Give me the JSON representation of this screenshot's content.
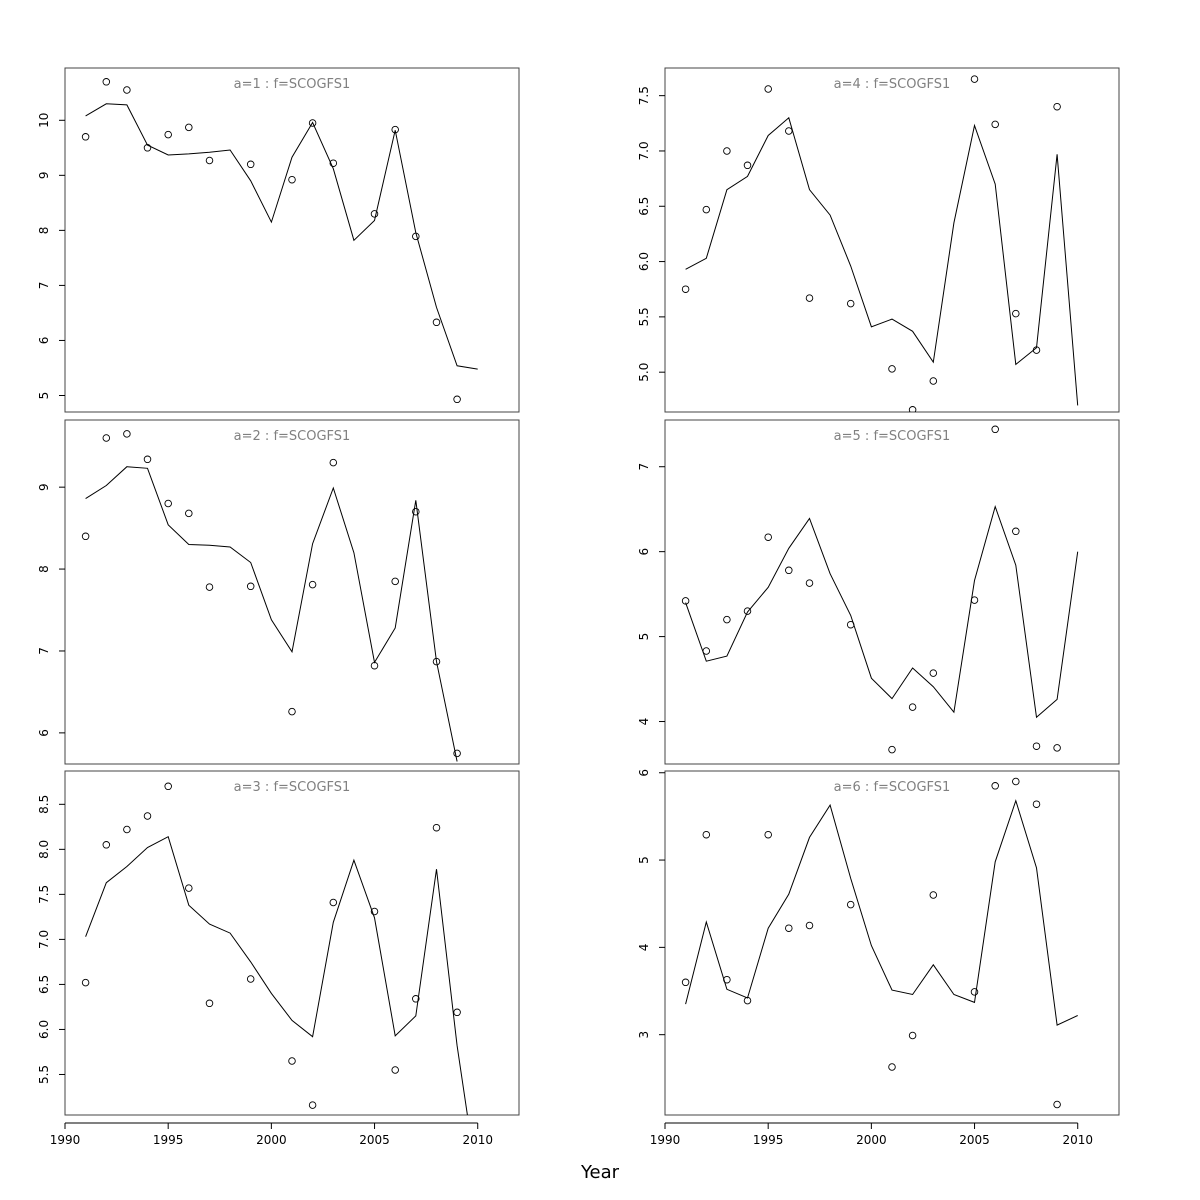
{
  "figure": {
    "xlabel": "Year"
  },
  "chart_data": [
    {
      "type": "scatter",
      "title": "a=1 : f=SCOGFS1",
      "xlim": [
        1990,
        2012
      ],
      "ylim": [
        4.7,
        10.95
      ],
      "xticks": [
        1990,
        1995,
        2000,
        2005,
        2010
      ],
      "yticks": [
        5,
        6,
        7,
        8,
        9,
        10
      ],
      "series": [
        {
          "kind": "points",
          "x": [
            1991,
            1992,
            1993,
            1994,
            1995,
            1996,
            1997,
            1999,
            2001,
            2002,
            2003,
            2005,
            2006,
            2007,
            2008,
            2009
          ],
          "y": [
            9.7,
            10.7,
            10.55,
            9.5,
            9.74,
            9.87,
            9.27,
            9.2,
            8.92,
            9.95,
            9.22,
            8.3,
            9.83,
            7.89,
            6.33,
            4.93
          ]
        },
        {
          "kind": "line",
          "x": [
            1991,
            1992,
            1993,
            1994,
            1995,
            1996,
            1997,
            1998,
            1999,
            2000,
            2001,
            2002,
            2003,
            2004,
            2005,
            2006,
            2007,
            2008,
            2009,
            2010
          ],
          "y": [
            10.08,
            10.3,
            10.28,
            9.55,
            9.37,
            9.39,
            9.42,
            9.46,
            8.9,
            8.15,
            9.33,
            9.96,
            9.12,
            7.82,
            8.18,
            9.82,
            7.96,
            6.6,
            5.54,
            5.48
          ]
        }
      ]
    },
    {
      "type": "scatter",
      "title": "a=2 : f=SCOGFS1",
      "xlim": [
        1990,
        2012
      ],
      "ylim": [
        5.62,
        9.82
      ],
      "xticks": [
        1990,
        1995,
        2000,
        2005,
        2010
      ],
      "yticks": [
        6,
        7,
        8,
        9
      ],
      "series": [
        {
          "kind": "points",
          "x": [
            1991,
            1992,
            1993,
            1994,
            1995,
            1996,
            1997,
            1999,
            2001,
            2002,
            2003,
            2005,
            2006,
            2007,
            2008,
            2009
          ],
          "y": [
            8.4,
            9.6,
            9.65,
            9.34,
            8.8,
            8.68,
            7.78,
            7.79,
            6.26,
            7.81,
            9.3,
            6.82,
            7.85,
            8.7,
            6.87,
            5.75
          ]
        },
        {
          "kind": "line",
          "x": [
            1991,
            1992,
            1993,
            1994,
            1995,
            1996,
            1997,
            1998,
            1999,
            2000,
            2001,
            2002,
            2003,
            2004,
            2005,
            2006,
            2007,
            2008,
            2009
          ],
          "y": [
            8.86,
            9.02,
            9.25,
            9.23,
            8.54,
            8.3,
            8.29,
            8.27,
            8.08,
            7.38,
            6.99,
            8.31,
            8.99,
            8.2,
            6.86,
            7.28,
            8.84,
            6.87,
            5.65
          ]
        }
      ]
    },
    {
      "type": "scatter",
      "title": "a=3 : f=SCOGFS1",
      "xlim": [
        1990,
        2012
      ],
      "ylim": [
        5.05,
        8.87
      ],
      "xticks": [
        1990,
        1995,
        2000,
        2005,
        2010
      ],
      "yticks": [
        5.5,
        6.0,
        6.5,
        7.0,
        7.5,
        8.0,
        8.5
      ],
      "series": [
        {
          "kind": "points",
          "x": [
            1991,
            1992,
            1993,
            1994,
            1995,
            1996,
            1997,
            1999,
            2001,
            2002,
            2003,
            2005,
            2006,
            2007,
            2008,
            2009
          ],
          "y": [
            6.52,
            8.05,
            8.22,
            8.37,
            8.7,
            7.57,
            6.29,
            6.56,
            5.65,
            5.16,
            7.41,
            7.31,
            5.55,
            6.34,
            8.24,
            6.19
          ]
        },
        {
          "kind": "line",
          "x": [
            1991,
            1992,
            1993,
            1994,
            1995,
            1996,
            1997,
            1998,
            1999,
            2000,
            2001,
            2002,
            2003,
            2004,
            2005,
            2006,
            2007,
            2008,
            2009,
            2009.5
          ],
          "y": [
            7.03,
            7.63,
            7.81,
            8.02,
            8.14,
            7.38,
            7.17,
            7.07,
            6.75,
            6.4,
            6.1,
            5.92,
            7.19,
            7.88,
            7.24,
            5.93,
            6.15,
            7.78,
            5.82,
            5.05
          ]
        }
      ]
    },
    {
      "type": "scatter",
      "title": "a=4 : f=SCOGFS1",
      "xlim": [
        1990,
        2012
      ],
      "ylim": [
        4.64,
        7.75
      ],
      "xticks": [
        1990,
        1995,
        2000,
        2005,
        2010
      ],
      "yticks": [
        5.0,
        5.5,
        6.0,
        6.5,
        7.0,
        7.5
      ],
      "series": [
        {
          "kind": "points",
          "x": [
            1991,
            1992,
            1993,
            1994,
            1995,
            1996,
            1997,
            1999,
            2001,
            2002,
            2003,
            2005,
            2006,
            2007,
            2008,
            2009
          ],
          "y": [
            5.75,
            6.47,
            7.0,
            6.87,
            7.56,
            7.18,
            5.67,
            5.62,
            5.03,
            4.66,
            4.92,
            7.65,
            7.24,
            5.53,
            5.2,
            7.4
          ]
        },
        {
          "kind": "line",
          "x": [
            1991,
            1992,
            1993,
            1994,
            1995,
            1996,
            1997,
            1998,
            1999,
            2000,
            2001,
            2002,
            2003,
            2004,
            2005,
            2006,
            2007,
            2008,
            2009,
            2010
          ],
          "y": [
            5.93,
            6.03,
            6.65,
            6.77,
            7.14,
            7.3,
            6.65,
            6.42,
            5.96,
            5.41,
            5.48,
            5.37,
            5.09,
            6.35,
            7.23,
            6.7,
            5.07,
            5.22,
            6.97,
            4.7
          ]
        }
      ]
    },
    {
      "type": "scatter",
      "title": "a=5 : f=SCOGFS1",
      "xlim": [
        1990,
        2012
      ],
      "ylim": [
        3.5,
        7.55
      ],
      "xticks": [
        1990,
        1995,
        2000,
        2005,
        2010
      ],
      "yticks": [
        4,
        5,
        6,
        7
      ],
      "series": [
        {
          "kind": "points",
          "x": [
            1991,
            1992,
            1993,
            1994,
            1995,
            1996,
            1997,
            1999,
            2001,
            2002,
            2003,
            2005,
            2006,
            2007,
            2008,
            2009
          ],
          "y": [
            5.42,
            4.83,
            5.2,
            5.3,
            6.17,
            5.78,
            5.63,
            5.14,
            3.67,
            4.17,
            4.57,
            5.43,
            7.44,
            6.24,
            3.71,
            3.69
          ]
        },
        {
          "kind": "line",
          "x": [
            1991,
            1992,
            1993,
            1994,
            1995,
            1996,
            1997,
            1998,
            1999,
            2000,
            2001,
            2002,
            2003,
            2004,
            2005,
            2006,
            2007,
            2008,
            2009,
            2010
          ],
          "y": [
            5.4,
            4.71,
            4.77,
            5.29,
            5.58,
            6.04,
            6.39,
            5.74,
            5.25,
            4.51,
            4.27,
            4.63,
            4.41,
            4.11,
            5.66,
            6.53,
            5.84,
            4.05,
            4.26,
            6.0
          ]
        }
      ]
    },
    {
      "type": "scatter",
      "title": "a=6 : f=SCOGFS1",
      "xlim": [
        1990,
        2012
      ],
      "ylim": [
        2.08,
        6.02
      ],
      "xticks": [
        1990,
        1995,
        2000,
        2005,
        2010
      ],
      "yticks": [
        3,
        4,
        5,
        6
      ],
      "series": [
        {
          "kind": "points",
          "x": [
            1991,
            1992,
            1993,
            1994,
            1995,
            1996,
            1997,
            1999,
            2001,
            2002,
            2003,
            2005,
            2006,
            2007,
            2008,
            2009
          ],
          "y": [
            3.6,
            5.29,
            3.63,
            3.39,
            5.29,
            4.22,
            4.25,
            4.49,
            2.63,
            2.99,
            4.6,
            3.49,
            5.85,
            5.9,
            5.64,
            2.2
          ]
        },
        {
          "kind": "line",
          "x": [
            1991,
            1992,
            1993,
            1994,
            1995,
            1996,
            1997,
            1998,
            1999,
            2000,
            2001,
            2002,
            2003,
            2004,
            2005,
            2006,
            2007,
            2008,
            2009,
            2010
          ],
          "y": [
            3.35,
            4.29,
            3.52,
            3.42,
            4.22,
            4.61,
            5.26,
            5.63,
            4.79,
            4.02,
            3.51,
            3.46,
            3.8,
            3.46,
            3.37,
            4.98,
            5.68,
            4.91,
            3.11,
            3.22
          ]
        }
      ]
    }
  ]
}
